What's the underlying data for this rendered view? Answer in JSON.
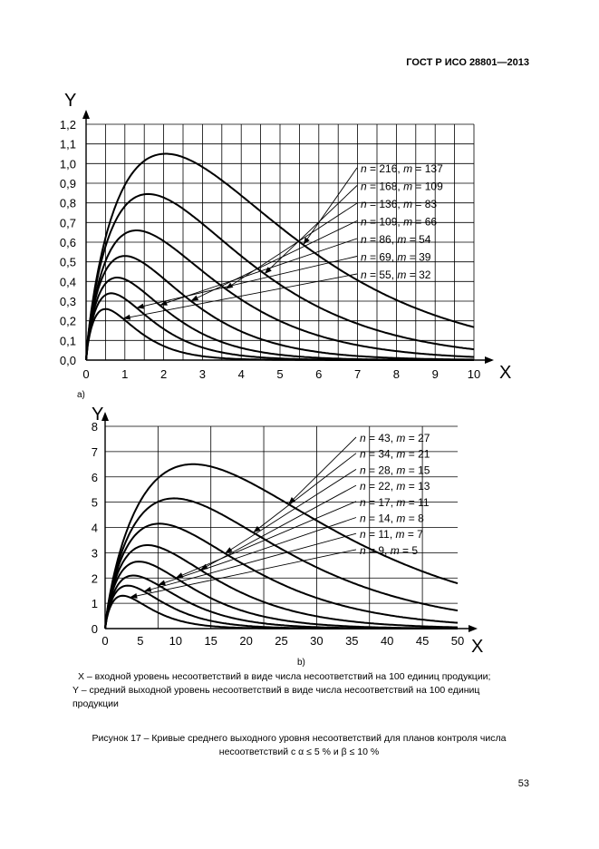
{
  "header": "ГОСТ Р ИСО 28801—2013",
  "panel_a_label": "a)",
  "panel_b_label": "b)",
  "caption_x": "X – входной уровень несоответствий в виде числа несоответствий на 100 единиц продукции;",
  "caption_y": "Y – средний выходной уровень несоответствий в виде числа несоответствий на 100 единиц продукции",
  "figure_caption": "Рисунок 17 – Кривые среднего выходного уровня несоответствий для планов контроля числа несоответствий с α ≤ 5 % и β ≤ 10 %",
  "page_number": "53",
  "chart_data": [
    {
      "id": "a",
      "type": "line",
      "title": "",
      "xlabel": "X",
      "ylabel": "Y",
      "xlim": [
        0,
        10
      ],
      "ylim": [
        0,
        1.2
      ],
      "xticks": [
        0,
        1,
        2,
        3,
        4,
        5,
        6,
        7,
        8,
        9,
        10
      ],
      "yticks": [
        0.0,
        0.1,
        0.2,
        0.3,
        0.4,
        0.5,
        0.6,
        0.7,
        0.8,
        0.9,
        1.0,
        1.1,
        1.2
      ],
      "ytick_labels": [
        "0,0",
        "0,1",
        "0,2",
        "0,3",
        "0,4",
        "0,5",
        "0,6",
        "0,7",
        "0,8",
        "0,9",
        "1,0",
        "1,1",
        "1,2"
      ],
      "xgrid_step": 0.5,
      "series": [
        {
          "name": "n = 216, m = 137",
          "n": 216,
          "m": 137,
          "peak_x": 2.05,
          "peak_y": 1.05,
          "arrow_x": 5.6
        },
        {
          "name": "n = 168, m = 109",
          "n": 168,
          "m": 109,
          "peak_x": 1.6,
          "peak_y": 0.845,
          "arrow_x": 4.6
        },
        {
          "name": "n = 136, m = 83",
          "n": 136,
          "m": 83,
          "peak_x": 1.3,
          "peak_y": 0.66,
          "arrow_x": 3.6
        },
        {
          "name": "n = 109, m = 66",
          "n": 109,
          "m": 66,
          "peak_x": 1.0,
          "peak_y": 0.53,
          "arrow_x": 2.7
        },
        {
          "name": "n = 86, m = 54",
          "n": 86,
          "m": 54,
          "peak_x": 0.8,
          "peak_y": 0.42,
          "arrow_x": 1.9
        },
        {
          "name": "n = 69, m = 39",
          "n": 69,
          "m": 39,
          "peak_x": 0.65,
          "peak_y": 0.34,
          "arrow_x": 1.3
        },
        {
          "name": "n = 55, m = 32",
          "n": 55,
          "m": 32,
          "peak_x": 0.5,
          "peak_y": 0.26,
          "arrow_x": 0.95
        }
      ]
    },
    {
      "id": "b",
      "type": "line",
      "title": "",
      "xlabel": "X",
      "ylabel": "Y",
      "xlim": [
        0,
        50
      ],
      "ylim": [
        0,
        8
      ],
      "xticks": [
        0,
        5,
        10,
        15,
        20,
        25,
        30,
        35,
        40,
        45,
        50
      ],
      "yticks": [
        0,
        1,
        2,
        3,
        4,
        5,
        6,
        7,
        8
      ],
      "ytick_labels": [
        "0",
        "1",
        "2",
        "3",
        "4",
        "5",
        "6",
        "7",
        "8"
      ],
      "xgrid_step": 7.5,
      "series": [
        {
          "name": "n = 43, m = 27",
          "n": 43,
          "m": 27,
          "peak_x": 12.5,
          "peak_y": 6.5,
          "arrow_x": 26
        },
        {
          "name": "n = 34, m = 21",
          "n": 34,
          "m": 21,
          "peak_x": 9.8,
          "peak_y": 5.15,
          "arrow_x": 21
        },
        {
          "name": "n = 28, m = 15",
          "n": 28,
          "m": 15,
          "peak_x": 7.7,
          "peak_y": 4.15,
          "arrow_x": 17
        },
        {
          "name": "n = 22, m = 13",
          "n": 22,
          "m": 13,
          "peak_x": 6.0,
          "peak_y": 3.3,
          "arrow_x": 13.5
        },
        {
          "name": "n = 17, m = 11",
          "n": 17,
          "m": 11,
          "peak_x": 4.8,
          "peak_y": 2.65,
          "arrow_x": 10
        },
        {
          "name": "n = 14, m = 8",
          "n": 14,
          "m": 8,
          "peak_x": 4.0,
          "peak_y": 2.1,
          "arrow_x": 7.5
        },
        {
          "name": "n = 11, m = 7",
          "n": 11,
          "m": 7,
          "peak_x": 3.2,
          "peak_y": 1.7,
          "arrow_x": 5.5
        },
        {
          "name": "n = 9, m = 5",
          "n": 9,
          "m": 5,
          "peak_x": 2.5,
          "peak_y": 1.3,
          "arrow_x": 3.5
        }
      ]
    }
  ]
}
